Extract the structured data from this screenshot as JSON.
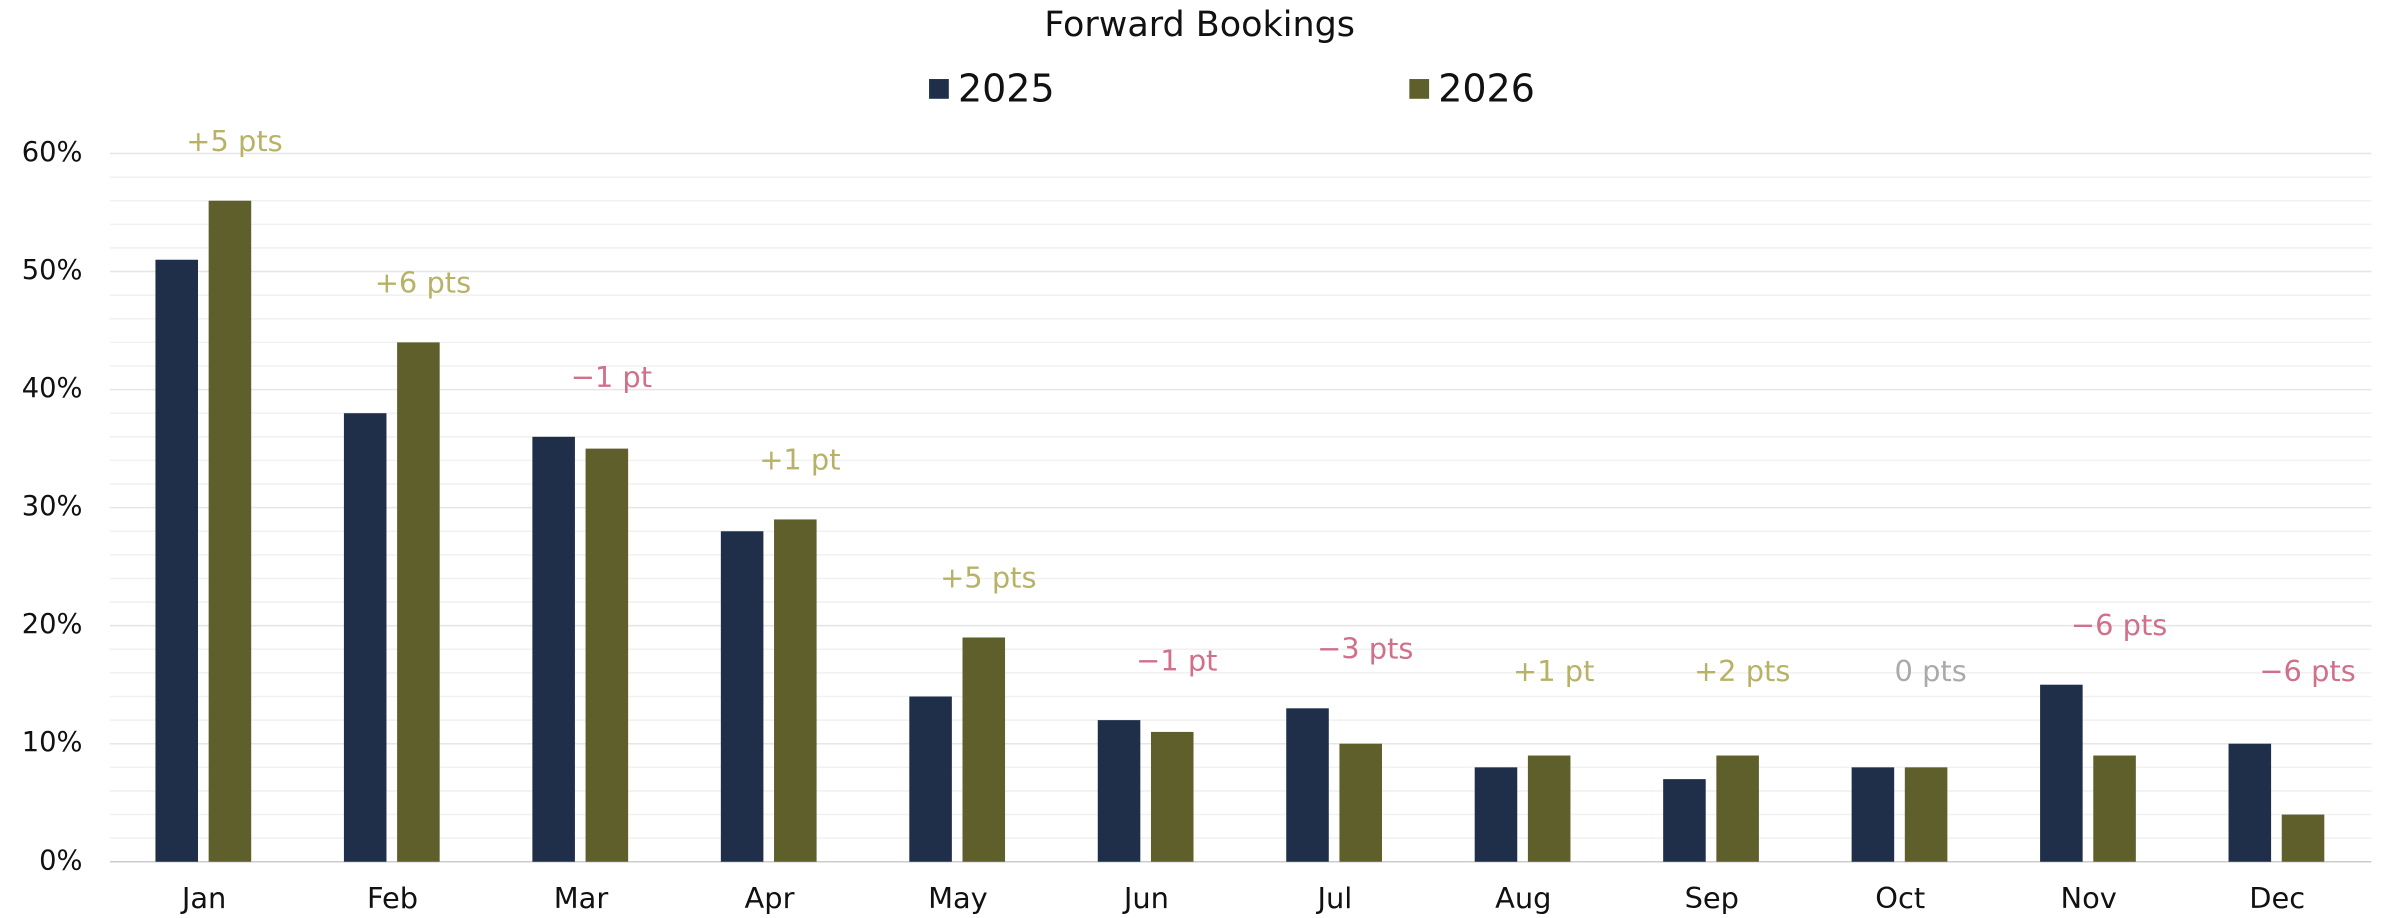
{
  "chart_data": {
    "type": "bar",
    "title": "Forward Bookings",
    "categories": [
      "Jan",
      "Feb",
      "Mar",
      "Apr",
      "May",
      "Jun",
      "Jul",
      "Aug",
      "Sep",
      "Oct",
      "Nov",
      "Dec"
    ],
    "series": [
      {
        "name": "2025",
        "color": "#1f2f4a",
        "values": [
          51,
          38,
          36,
          28,
          14,
          12,
          13,
          8,
          7,
          8,
          15,
          10
        ]
      },
      {
        "name": "2026",
        "color": "#5f5f2c",
        "values": [
          56,
          44,
          35,
          29,
          19,
          11,
          10,
          9,
          9,
          8,
          9,
          4
        ]
      }
    ],
    "annotations": [
      "+5 pts",
      "+6 pts",
      "−1 pt",
      "+1 pt",
      "+5 pts",
      "−1 pt",
      "−3 pts",
      "+1 pt",
      "+2 pts",
      "0 pts",
      "−6 pts",
      "−6 pts"
    ],
    "annotation_colors": [
      "#b8b266",
      "#b8b266",
      "#d0708a",
      "#b8b266",
      "#b8b266",
      "#d0708a",
      "#d0708a",
      "#b8b266",
      "#b8b266",
      "#aaaaaa",
      "#d0708a",
      "#d0708a"
    ],
    "ylim": [
      0,
      60
    ],
    "yticks": [
      {
        "value": 0,
        "label": "0%"
      },
      {
        "value": 10,
        "label": "10%"
      },
      {
        "value": 20,
        "label": "20%"
      },
      {
        "value": 30,
        "label": "30%"
      },
      {
        "value": 40,
        "label": "40%"
      },
      {
        "value": 50,
        "label": "50%"
      },
      {
        "value": 60,
        "label": "60%"
      }
    ],
    "minor_yticks": [
      2,
      4,
      6,
      8,
      12,
      14,
      16,
      18,
      22,
      24,
      26,
      28,
      32,
      34,
      36,
      38,
      42,
      44,
      46,
      48,
      52,
      54,
      56,
      58
    ],
    "grid": true,
    "legend": "top"
  }
}
